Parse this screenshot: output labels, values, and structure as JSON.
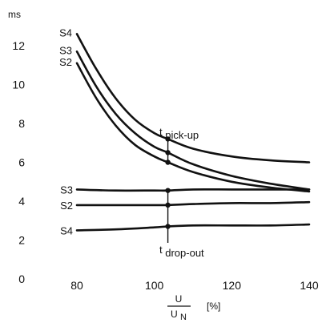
{
  "chart_data": {
    "type": "line",
    "y_unit": "ms",
    "x_unit": "[%]",
    "x_label_numerator": "U",
    "x_label_denominator_main": "U",
    "x_label_denominator_sub": "N",
    "xlim": [
      80,
      140
    ],
    "ylim": [
      0,
      12
    ],
    "x_ticks": [
      80,
      100,
      120,
      140
    ],
    "y_ticks": [
      0,
      2,
      4,
      6,
      8,
      10,
      12
    ],
    "grid": false,
    "annotations": {
      "pickup": {
        "main": "t",
        "sub": "pick-up",
        "x": 103.5
      },
      "dropout": {
        "main": "t",
        "sub": "drop-out",
        "x": 103.5
      }
    },
    "series": [
      {
        "name": "S4",
        "group": "pick-up",
        "x": [
          80,
          85,
          90,
          95,
          100,
          103.5,
          110,
          120,
          130,
          140
        ],
        "y": [
          12.6,
          10.8,
          9.3,
          8.2,
          7.5,
          7.2,
          6.7,
          6.3,
          6.1,
          6.0
        ]
      },
      {
        "name": "S3",
        "group": "pick-up",
        "x": [
          80,
          85,
          90,
          95,
          100,
          103.5,
          110,
          120,
          130,
          140
        ],
        "y": [
          11.7,
          9.9,
          8.5,
          7.5,
          6.8,
          6.5,
          5.9,
          5.3,
          4.9,
          4.6
        ]
      },
      {
        "name": "S2",
        "group": "pick-up",
        "x": [
          80,
          85,
          90,
          95,
          100,
          103.5,
          110,
          120,
          130,
          140
        ],
        "y": [
          11.1,
          9.3,
          7.9,
          6.9,
          6.3,
          6.0,
          5.5,
          5.0,
          4.7,
          4.5
        ]
      },
      {
        "name": "S3",
        "group": "drop-out",
        "x": [
          80,
          90,
          100,
          103.5,
          110,
          120,
          130,
          140
        ],
        "y": [
          4.6,
          4.55,
          4.55,
          4.55,
          4.6,
          4.6,
          4.6,
          4.6
        ]
      },
      {
        "name": "S2",
        "group": "drop-out",
        "x": [
          80,
          90,
          100,
          103.5,
          110,
          120,
          130,
          140
        ],
        "y": [
          3.8,
          3.8,
          3.8,
          3.8,
          3.85,
          3.9,
          3.9,
          3.95
        ]
      },
      {
        "name": "S4",
        "group": "drop-out",
        "x": [
          80,
          90,
          100,
          103.5,
          110,
          120,
          130,
          140
        ],
        "y": [
          2.5,
          2.55,
          2.65,
          2.7,
          2.75,
          2.75,
          2.75,
          2.8
        ]
      }
    ]
  }
}
